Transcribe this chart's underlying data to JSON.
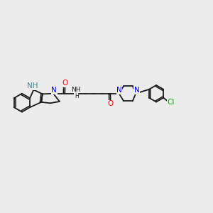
{
  "bg_color": "#ececec",
  "bond_color": "#1a1a1a",
  "N_color": "#0000ff",
  "NH_color": "#3a8a8a",
  "O_color": "#ff0000",
  "Cl_color": "#00aa00",
  "lw": 1.3,
  "fs": 7.0,
  "xlim": [
    0.0,
    10.2
  ],
  "ylim": [
    -2.2,
    2.2
  ],
  "figw": 3.0,
  "figh": 3.0
}
